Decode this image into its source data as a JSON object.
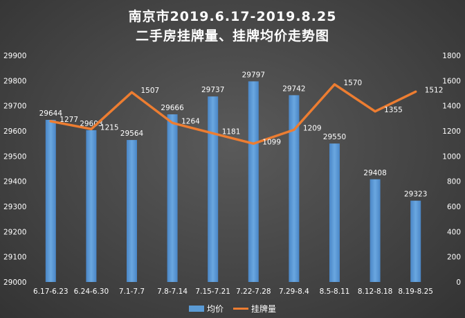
{
  "chart_data": {
    "type": "bar+line",
    "title": [
      "南京市2019.6.17-2019.8.25",
      "二手房挂牌量、挂牌均价走势图"
    ],
    "categories": [
      "6.17-6.23",
      "6.24-6.30",
      "7.1-7.7",
      "7.8-7.14",
      "7.15-7.21",
      "7.22-7.28",
      "7.29-8.4",
      "8.5-8.11",
      "8.12-8.18",
      "8.19-8.25"
    ],
    "series": [
      {
        "name": "均价",
        "type": "bar",
        "axis": "left",
        "color": "#5b9bd5",
        "values": [
          29644,
          29603,
          29564,
          29666,
          29737,
          29797,
          29742,
          29550,
          29408,
          29323
        ]
      },
      {
        "name": "挂牌量",
        "type": "line",
        "axis": "right",
        "color": "#ed7d31",
        "values": [
          1277,
          1215,
          1507,
          1264,
          1181,
          1099,
          1209,
          1570,
          1355,
          1512
        ]
      }
    ],
    "y_left": {
      "min": 29000,
      "max": 29900,
      "step": 100,
      "ticks": [
        "29000",
        "29100",
        "29200",
        "29300",
        "29400",
        "29500",
        "29600",
        "29700",
        "29800",
        "29900"
      ]
    },
    "y_right": {
      "min": 0,
      "max": 1800,
      "step": 200,
      "ticks": [
        "0",
        "200",
        "400",
        "600",
        "800",
        "1000",
        "1200",
        "1400",
        "1600",
        "1800"
      ]
    },
    "grid": false,
    "legend_position": "bottom"
  }
}
